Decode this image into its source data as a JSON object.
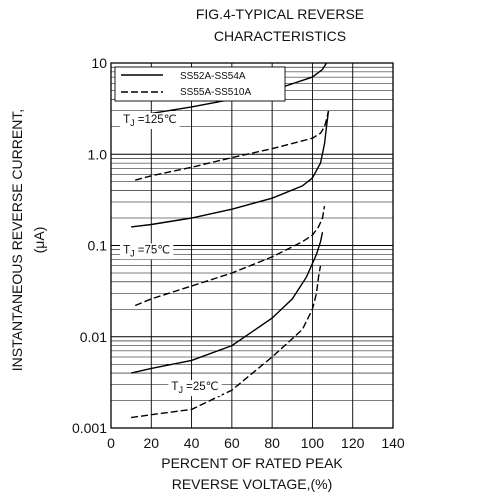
{
  "chart_data": {
    "type": "line",
    "title": [
      "FIG.4-TYPICAL REVERSE",
      "CHARACTERISTICS"
    ],
    "xlabel": [
      "PERCENT OF RATED PEAK",
      "REVERSE VOLTAGE,(%)"
    ],
    "ylabel": [
      "INSTANTANEOUS REVERSE CURRENT,",
      "(μA)"
    ],
    "xlim": [
      0,
      140
    ],
    "ylim": [
      0.001,
      10
    ],
    "yscale": "log",
    "grid": true,
    "xticks": [
      0,
      20,
      40,
      60,
      80,
      100,
      120,
      140
    ],
    "xtick_labels": [
      "0",
      "20",
      "40",
      "60",
      "80",
      "100",
      "120",
      "140"
    ],
    "yticks": [
      0.001,
      0.01,
      0.1,
      1,
      10
    ],
    "ytick_labels": [
      "0.001",
      "0.01",
      "0.1",
      "1.0",
      "10"
    ],
    "legend_position": "top-left",
    "legend": [
      {
        "label": "SS52A-SS54A",
        "style": "solid"
      },
      {
        "label": "SS55A-SS510A",
        "style": "dashed"
      }
    ],
    "annotations": [
      {
        "text": "TJ =125℃",
        "sub": "J",
        "x": 6,
        "y": 2.2
      },
      {
        "text": "TJ =75℃",
        "sub": "J",
        "x": 6,
        "y": 0.082
      },
      {
        "text": "TJ =25℃",
        "sub": "J",
        "x": 30,
        "y": 0.0026
      }
    ],
    "series": [
      {
        "name": "SS52A-SS54A",
        "temperature": "125℃",
        "style": "solid",
        "x": [
          10,
          20,
          40,
          60,
          80,
          100,
          105,
          107,
          108
        ],
        "y": [
          2.5,
          2.8,
          3.3,
          4.0,
          5.0,
          7.0,
          8.5,
          10,
          11
        ]
      },
      {
        "name": "SS55A-SS510A",
        "temperature": "125℃",
        "style": "dashed",
        "x": [
          12,
          20,
          40,
          60,
          80,
          100,
          104,
          106,
          107,
          108
        ],
        "y": [
          0.52,
          0.58,
          0.72,
          0.92,
          1.15,
          1.5,
          1.7,
          2.0,
          2.4,
          3.0
        ]
      },
      {
        "name": "SS52A-SS54A",
        "temperature": "75℃",
        "style": "solid",
        "x": [
          10,
          20,
          40,
          60,
          80,
          95,
          100,
          104,
          106,
          107,
          108
        ],
        "y": [
          0.16,
          0.17,
          0.2,
          0.25,
          0.33,
          0.45,
          0.55,
          0.8,
          1.3,
          2.0,
          3.0
        ]
      },
      {
        "name": "SS55A-SS510A",
        "temperature": "75℃",
        "style": "dashed",
        "x": [
          12,
          20,
          40,
          60,
          80,
          95,
          100,
          103,
          105,
          106
        ],
        "y": [
          0.022,
          0.026,
          0.036,
          0.05,
          0.075,
          0.11,
          0.13,
          0.16,
          0.2,
          0.27
        ]
      },
      {
        "name": "SS52A-SS54A",
        "temperature": "25℃",
        "style": "solid",
        "x": [
          10,
          20,
          40,
          60,
          80,
          90,
          97,
          102,
          104,
          105
        ],
        "y": [
          0.004,
          0.0045,
          0.0055,
          0.008,
          0.016,
          0.026,
          0.045,
          0.08,
          0.11,
          0.14
        ]
      },
      {
        "name": "SS55A-SS510A",
        "temperature": "25℃",
        "style": "dashed",
        "x": [
          10,
          20,
          40,
          60,
          80,
          95,
          100,
          102,
          103,
          104
        ],
        "y": [
          0.0013,
          0.0014,
          0.0016,
          0.0026,
          0.006,
          0.012,
          0.02,
          0.03,
          0.045,
          0.06
        ]
      }
    ]
  }
}
